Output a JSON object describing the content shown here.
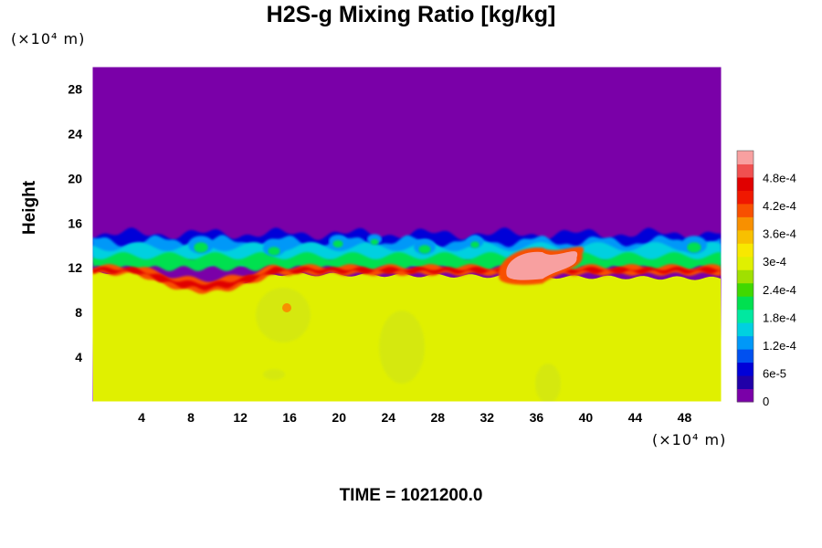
{
  "chart_data": {
    "type": "heatmap",
    "title": "H2S-g Mixing Ratio [kg/kg]",
    "ylabel": "Height",
    "xlabel": "",
    "x_unit": "(×10⁴ m)",
    "y_unit": "(×10⁴ m)",
    "xlim": [
      0,
      51
    ],
    "ylim": [
      0,
      30
    ],
    "x_ticks": [
      "4",
      "8",
      "12",
      "16",
      "20",
      "24",
      "28",
      "32",
      "36",
      "40",
      "44",
      "48"
    ],
    "y_ticks": [
      "4",
      "8",
      "12",
      "16",
      "20",
      "24",
      "28"
    ],
    "colorbar": {
      "min": 0,
      "max": 0.00054,
      "tick_labels": [
        "0",
        "6e-5",
        "1.2e-4",
        "1.8e-4",
        "2.4e-4",
        "3e-4",
        "3.6e-4",
        "4.2e-4",
        "4.8e-4"
      ],
      "colors": [
        "#7a00a8",
        "#2000a8",
        "#0000d8",
        "#0050f0",
        "#0098f8",
        "#00d0e0",
        "#00e8a0",
        "#00e050",
        "#40d800",
        "#a0e000",
        "#e0f000",
        "#f8e800",
        "#f8c000",
        "#f89000",
        "#f85000",
        "#f01800",
        "#e00000",
        "#f05050",
        "#f8a0a0"
      ]
    },
    "regions": [
      {
        "description_value": "upper layer",
        "y_range": [
          15,
          30
        ],
        "value": 0
      },
      {
        "description_value": "lower layer",
        "y_range": [
          0,
          11
        ],
        "value": 0.00034
      },
      {
        "description_value": "interface band",
        "y_range": [
          10,
          15
        ],
        "value_range": [
          6e-05,
          0.00054
        ]
      },
      {
        "description_value": "peak",
        "x_range": [
          33,
          40
        ],
        "y_range": [
          11,
          14
        ],
        "value": 0.00052
      }
    ]
  },
  "footer": {
    "time_label": "TIME = 1021200.0"
  }
}
